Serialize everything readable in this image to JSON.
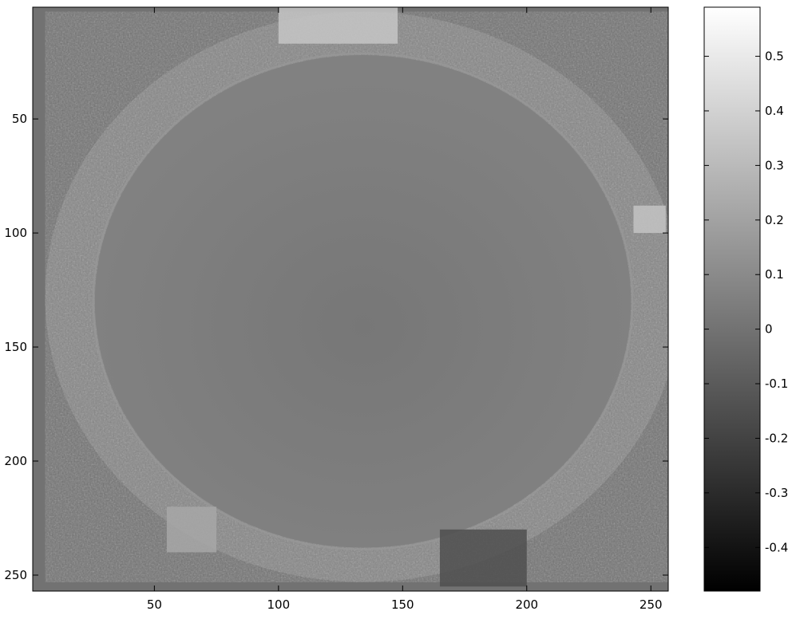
{
  "chart_data": {
    "type": "heatmap",
    "title": "",
    "xlabel": "",
    "ylabel": "",
    "colormap": "gray",
    "background_value": 0.0,
    "xlim": [
      1,
      257
    ],
    "ylim": [
      1,
      257
    ],
    "x_ticks": [
      50,
      100,
      150,
      200,
      250
    ],
    "y_ticks": [
      50,
      100,
      150,
      200,
      250
    ],
    "colorbar": {
      "min": -0.48,
      "max": 0.59,
      "ticks": [
        0.5,
        0.4,
        0.3,
        0.2,
        0.1,
        0,
        -0.1,
        -0.2,
        -0.3,
        -0.4
      ],
      "tick_labels": [
        "0.5",
        "0.4",
        "0.3",
        "0.2",
        "0.1",
        "0",
        "-0.1",
        "-0.2",
        "-0.3",
        "-0.4"
      ]
    },
    "regions": [
      {
        "name": "outer-disk",
        "center": [
          134,
          128
        ],
        "radii": [
          128,
          125
        ],
        "mean_value": 0.08,
        "noise": 0.12
      },
      {
        "name": "inner-disk",
        "center": [
          134,
          130
        ],
        "radii": [
          108,
          108
        ],
        "mean_value": 0.03,
        "noise": 0.01
      },
      {
        "name": "top-bright-patch",
        "x": [
          100,
          148
        ],
        "y": [
          1,
          17
        ],
        "mean_value": 0.35
      },
      {
        "name": "right-bright-patch",
        "x": [
          243,
          256
        ],
        "y": [
          88,
          100
        ],
        "mean_value": 0.34
      },
      {
        "name": "lower-left-bright-patch",
        "x": [
          55,
          75
        ],
        "y": [
          220,
          240
        ],
        "mean_value": 0.22
      },
      {
        "name": "lower-right-dark-patch",
        "x": [
          165,
          200
        ],
        "y": [
          230,
          255
        ],
        "mean_value": -0.15
      }
    ]
  }
}
